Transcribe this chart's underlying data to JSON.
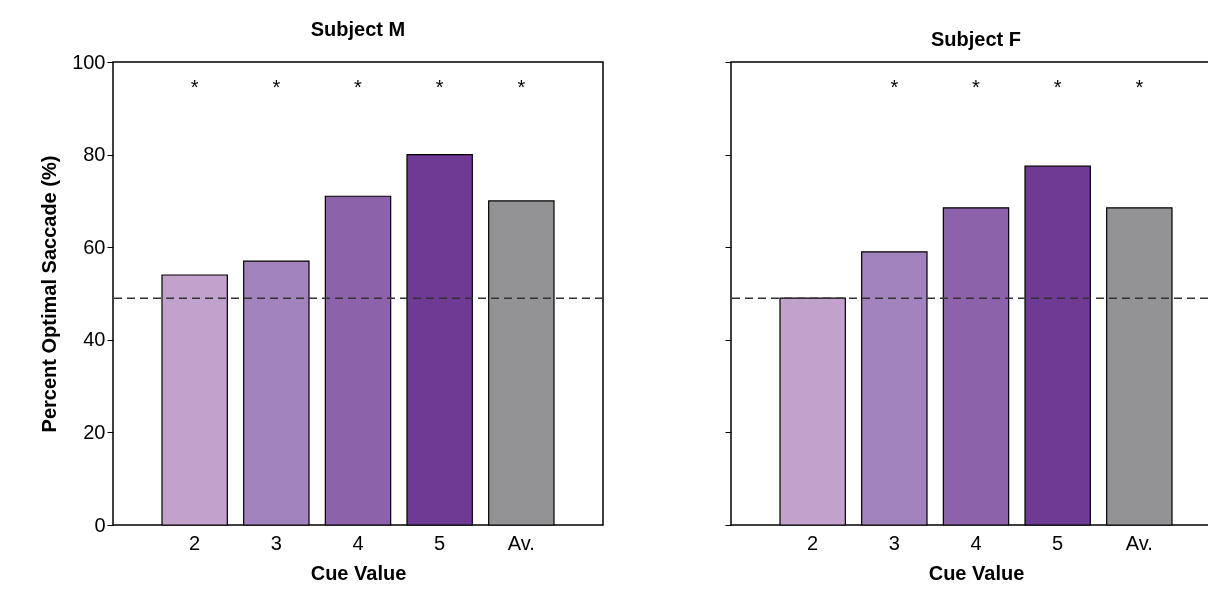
{
  "chart_data": [
    {
      "type": "bar",
      "title": "Subject M",
      "xlabel": "Cue Value",
      "ylabel": "Percent Optimal Saccade (%)",
      "categories": [
        "2",
        "3",
        "4",
        "5",
        "Av."
      ],
      "values": [
        54,
        57,
        71,
        80,
        70
      ],
      "colors": [
        "#c0a2cc",
        "#a283be",
        "#8c62aa",
        "#6e3a93",
        "#939396"
      ],
      "ylim": [
        0,
        100
      ],
      "yticks": [
        0,
        20,
        40,
        60,
        80,
        100
      ],
      "grid": false,
      "ref_lines": [
        {
          "axis": "y",
          "value": 49,
          "color": "#333333",
          "line_style": "dashed"
        }
      ],
      "annotations": [
        "*",
        "*",
        "*",
        "*",
        "*"
      ]
    },
    {
      "type": "bar",
      "title": "Subject F",
      "xlabel": "Cue Value",
      "categories": [
        "2",
        "3",
        "4",
        "5",
        "Av."
      ],
      "values": [
        49,
        59,
        68.5,
        77.5,
        68.5
      ],
      "colors": [
        "#c0a2cc",
        "#a283be",
        "#8c62aa",
        "#6e3a93",
        "#939396"
      ],
      "ylim": [
        0,
        100
      ],
      "yticks": [
        0,
        20,
        40,
        60,
        80,
        100
      ],
      "tick_labels": "x",
      "grid": false,
      "ref_lines": [
        {
          "axis": "y",
          "value": 49,
          "color": "#333333",
          "line_style": "dashed"
        }
      ],
      "annotations": [
        "*",
        "*",
        "*",
        "*"
      ]
    }
  ]
}
